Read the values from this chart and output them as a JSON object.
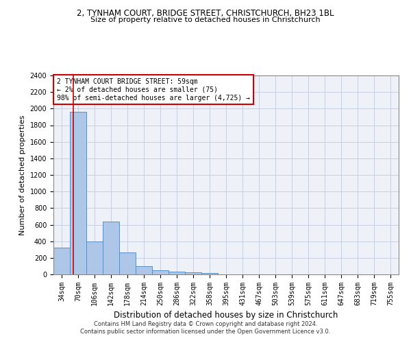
{
  "title_line1": "2, TYNHAM COURT, BRIDGE STREET, CHRISTCHURCH, BH23 1BL",
  "title_line2": "Size of property relative to detached houses in Christchurch",
  "xlabel": "Distribution of detached houses by size in Christchurch",
  "ylabel": "Number of detached properties",
  "footnote1": "Contains HM Land Registry data © Crown copyright and database right 2024.",
  "footnote2": "Contains public sector information licensed under the Open Government Licence v3.0.",
  "annotation_line1": "2 TYNHAM COURT BRIDGE STREET: 59sqm",
  "annotation_line2": "← 2% of detached houses are smaller (75)",
  "annotation_line3": "98% of semi-detached houses are larger (4,725) →",
  "bar_color": "#aec6e8",
  "bar_edge_color": "#5a8fc0",
  "ref_line_color": "#cc0000",
  "grid_color": "#c8d0e0",
  "background_color": "#eef2f8",
  "categories": [
    "34sqm",
    "70sqm",
    "106sqm",
    "142sqm",
    "178sqm",
    "214sqm",
    "250sqm",
    "286sqm",
    "322sqm",
    "358sqm",
    "395sqm",
    "431sqm",
    "467sqm",
    "503sqm",
    "539sqm",
    "575sqm",
    "611sqm",
    "647sqm",
    "683sqm",
    "719sqm",
    "755sqm"
  ],
  "values": [
    320,
    1960,
    400,
    640,
    265,
    100,
    50,
    35,
    25,
    15,
    0,
    0,
    0,
    0,
    0,
    0,
    0,
    0,
    0,
    0,
    0
  ],
  "ylim": [
    0,
    2400
  ],
  "yticks": [
    0,
    200,
    400,
    600,
    800,
    1000,
    1200,
    1400,
    1600,
    1800,
    2000,
    2200,
    2400
  ],
  "ref_line_x": 0.72,
  "title1_fontsize": 8.5,
  "title2_fontsize": 8.0,
  "ylabel_fontsize": 8.0,
  "xlabel_fontsize": 8.5,
  "tick_fontsize": 7.0,
  "annot_fontsize": 7.0,
  "footnote_fontsize": 6.0
}
